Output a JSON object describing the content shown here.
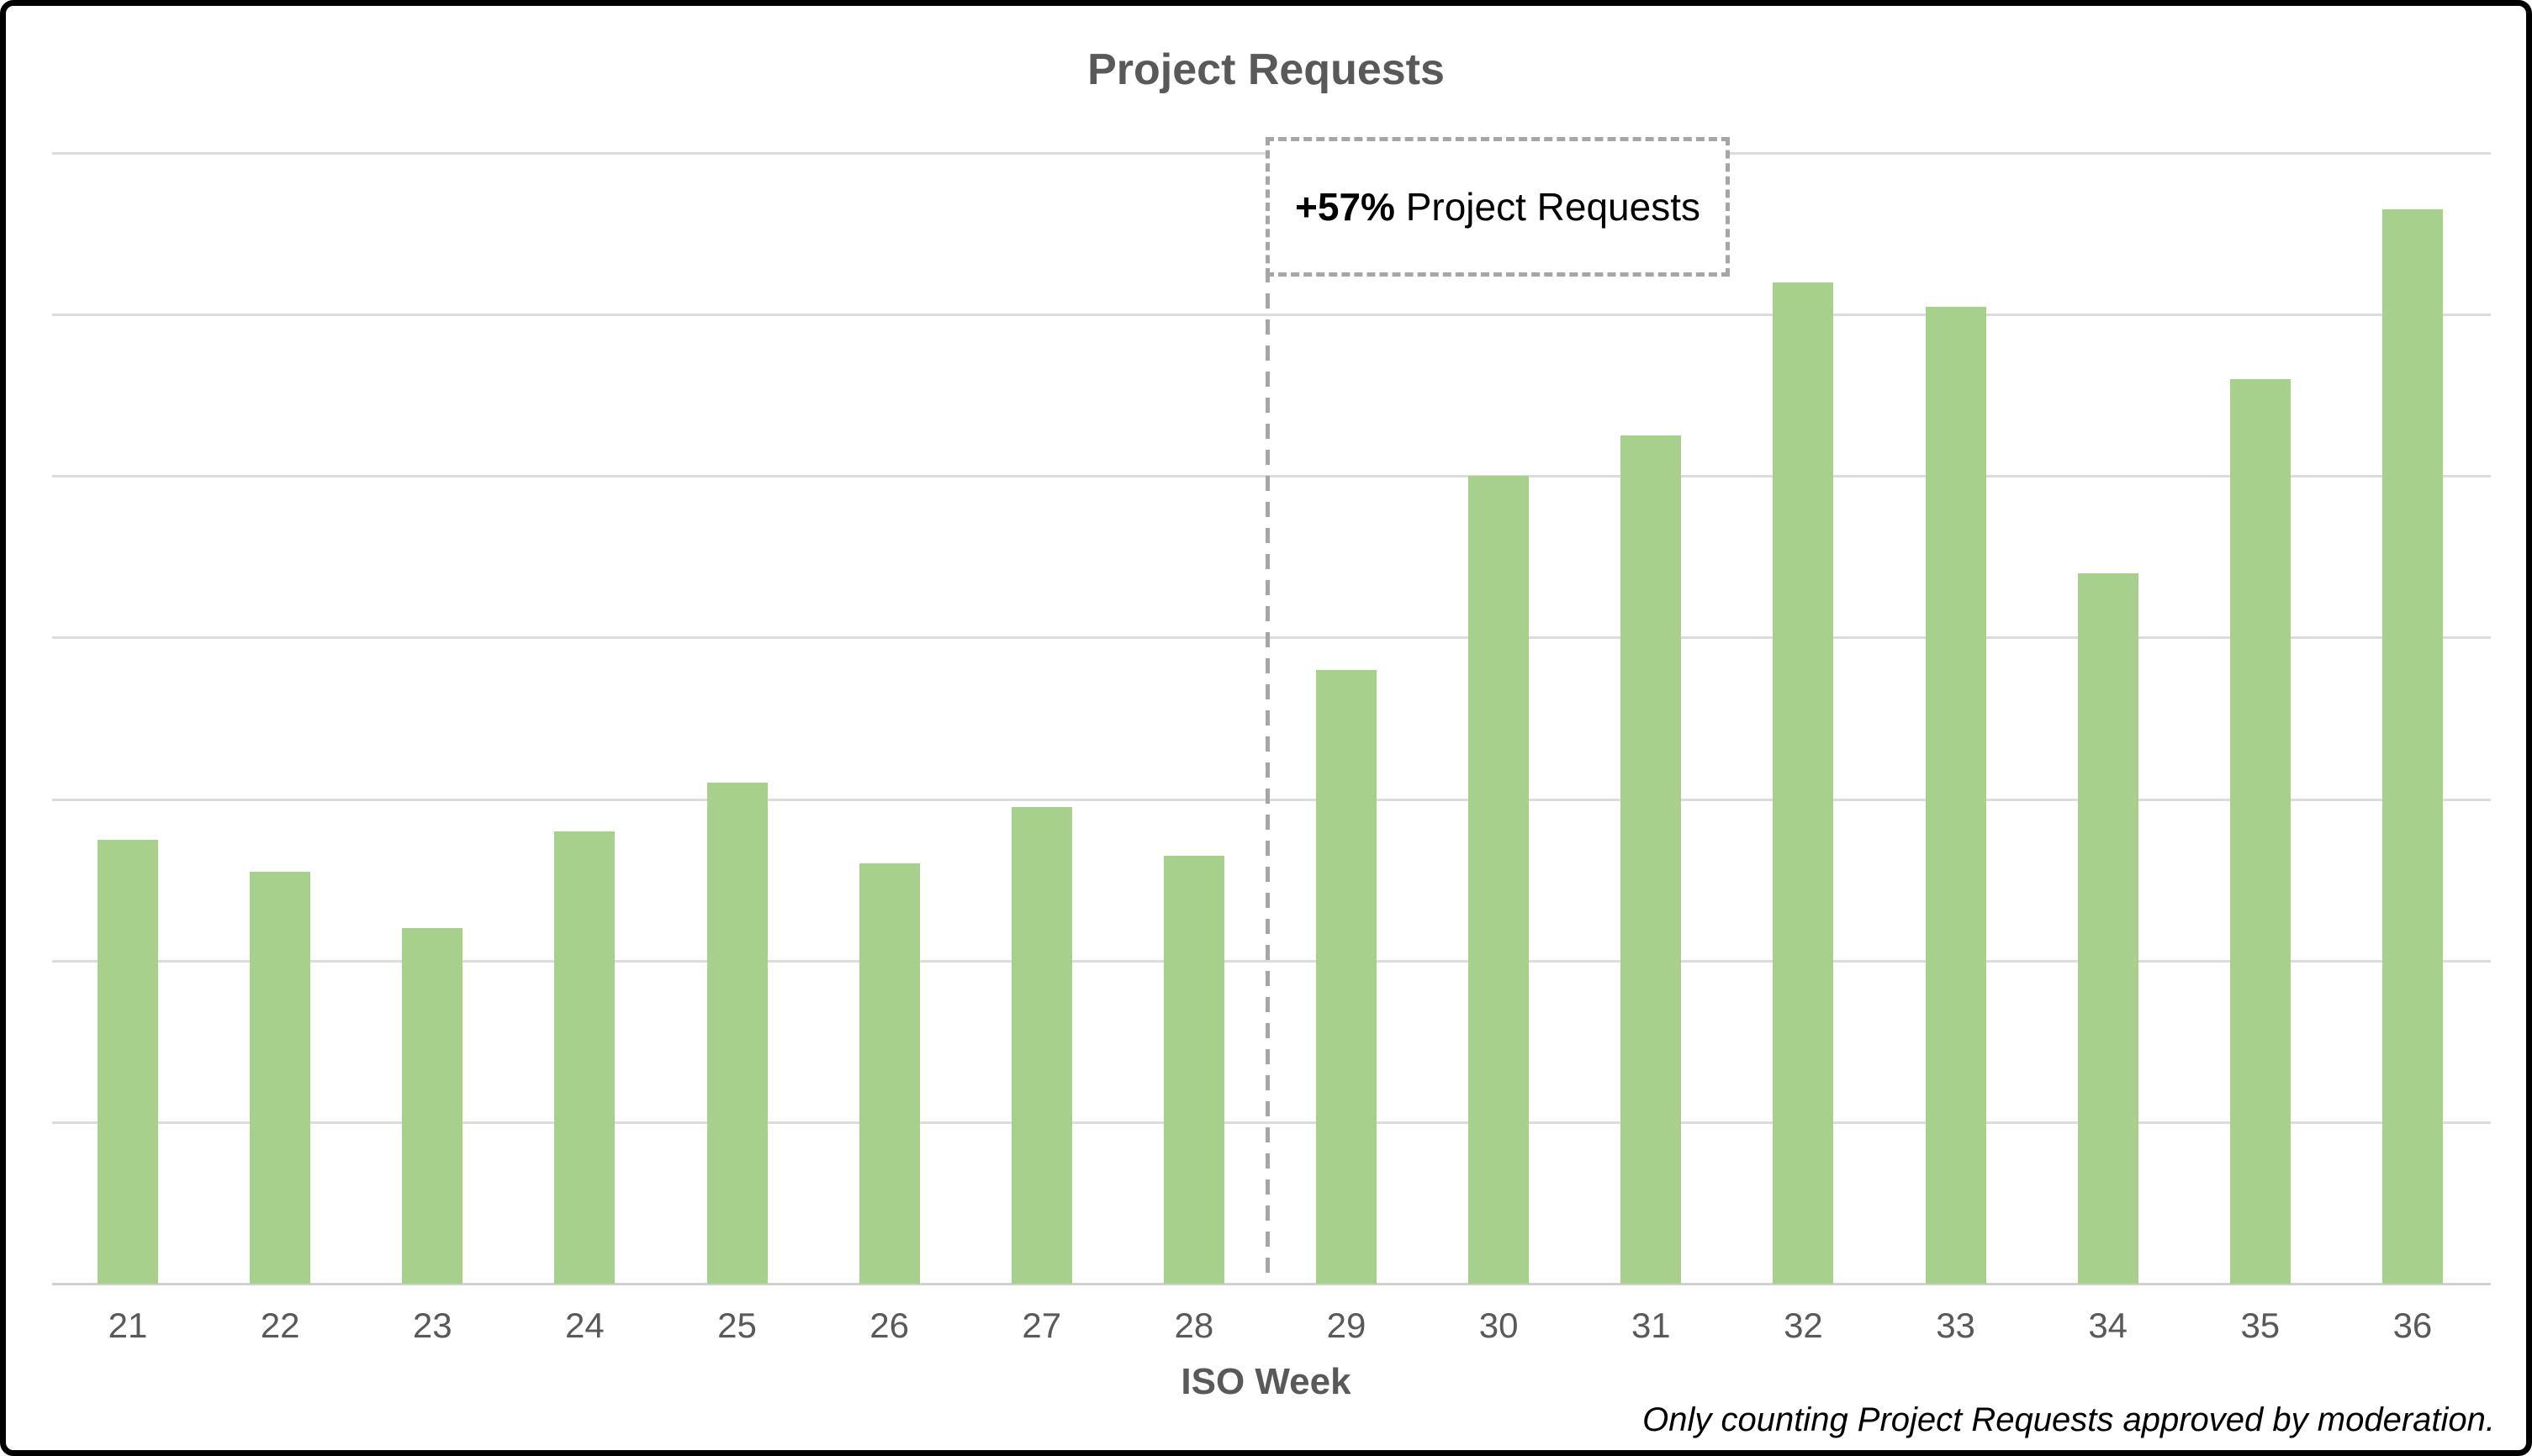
{
  "title": "Project Requests",
  "x_axis_label": "ISO Week",
  "footnote": "Only counting Project Requests approved by moderation.",
  "annotation": {
    "bold_part": "+57%",
    "rest_part": " Project Requests"
  },
  "colors": {
    "bar": "#A8D08D",
    "gridline": "#DCDCDC",
    "axis_baseline": "#D0D0D0",
    "axis_text": "#595959",
    "title_text": "#595959",
    "annotation_dash": "#A6A6A6",
    "footnote_text": "#000000",
    "frame_border": "#000000"
  },
  "chart_data": {
    "type": "bar",
    "title": "Project Requests",
    "xlabel": "ISO Week",
    "ylabel": "",
    "categories": [
      "21",
      "22",
      "23",
      "24",
      "25",
      "26",
      "27",
      "28",
      "29",
      "30",
      "31",
      "32",
      "33",
      "34",
      "35",
      "36"
    ],
    "values": [
      2.75,
      2.55,
      2.2,
      2.8,
      3.1,
      2.6,
      2.95,
      2.65,
      3.8,
      5.0,
      5.25,
      6.2,
      6.05,
      4.4,
      5.6,
      6.65
    ],
    "value_units": "relative height in horizontal-gridline units (y axis has no visible labels)",
    "ylim": [
      0,
      7
    ],
    "grid": "horizontal gridlines only, unlabeled y axis",
    "legend": "none",
    "annotation": {
      "text": "+57% Project Requests",
      "bold_part": "+57%",
      "marker": "dashed box with dashed vertical divider line between week 28 and week 29"
    },
    "footnote": "Only counting Project Requests approved by moderation."
  }
}
